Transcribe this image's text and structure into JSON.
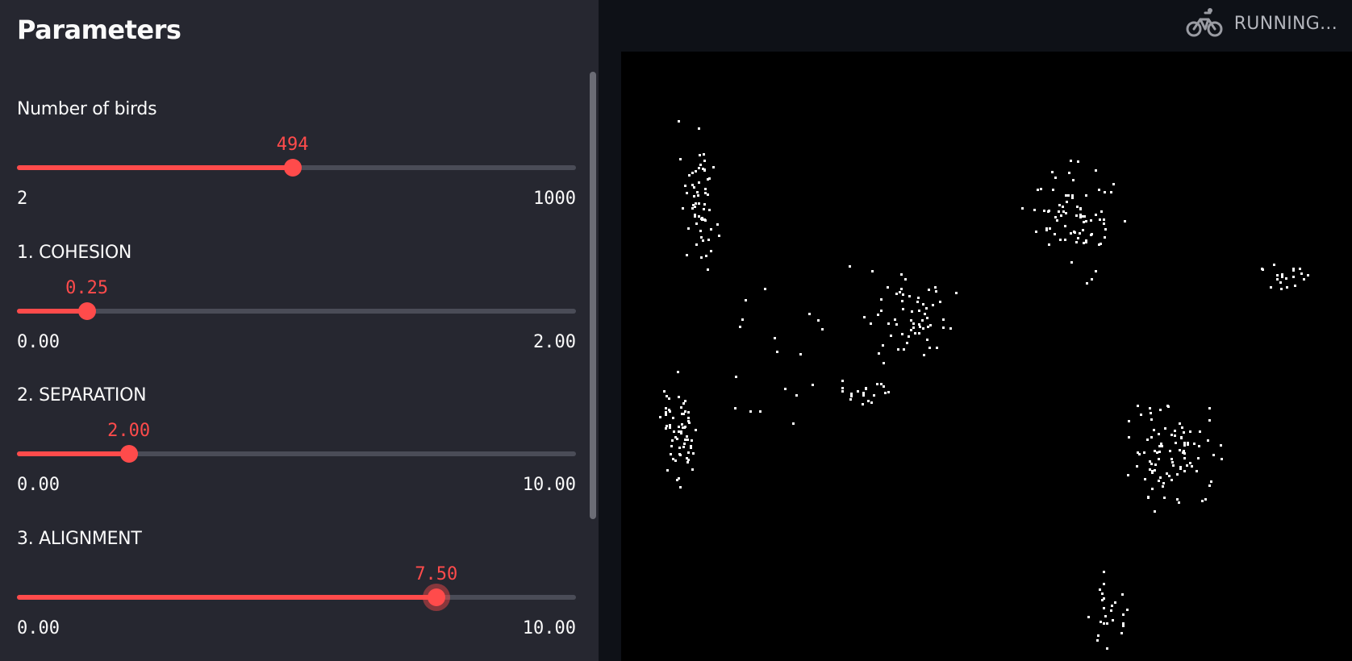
{
  "sidebar": {
    "title": "Parameters",
    "sliders": [
      {
        "label": "Number of birds",
        "value": "494",
        "min": "2",
        "max": "1000",
        "fraction": 0.493
      },
      {
        "label": "1. COHESION",
        "value": "0.25",
        "min": "0.00",
        "max": "2.00",
        "fraction": 0.125
      },
      {
        "label": "2. SEPARATION",
        "value": "2.00",
        "min": "0.00",
        "max": "10.00",
        "fraction": 0.2
      },
      {
        "label": "3. ALIGNMENT",
        "value": "7.50",
        "min": "0.00",
        "max": "10.00",
        "fraction": 0.75
      }
    ]
  },
  "header": {
    "status_text": "RUNNING...",
    "status_icon": "bicycle-icon"
  },
  "colors": {
    "accent": "#ff4b4b",
    "sidebar_bg": "#262730",
    "main_bg": "#0e1117",
    "canvas_bg": "#000000",
    "bird": "#ffffff"
  }
}
